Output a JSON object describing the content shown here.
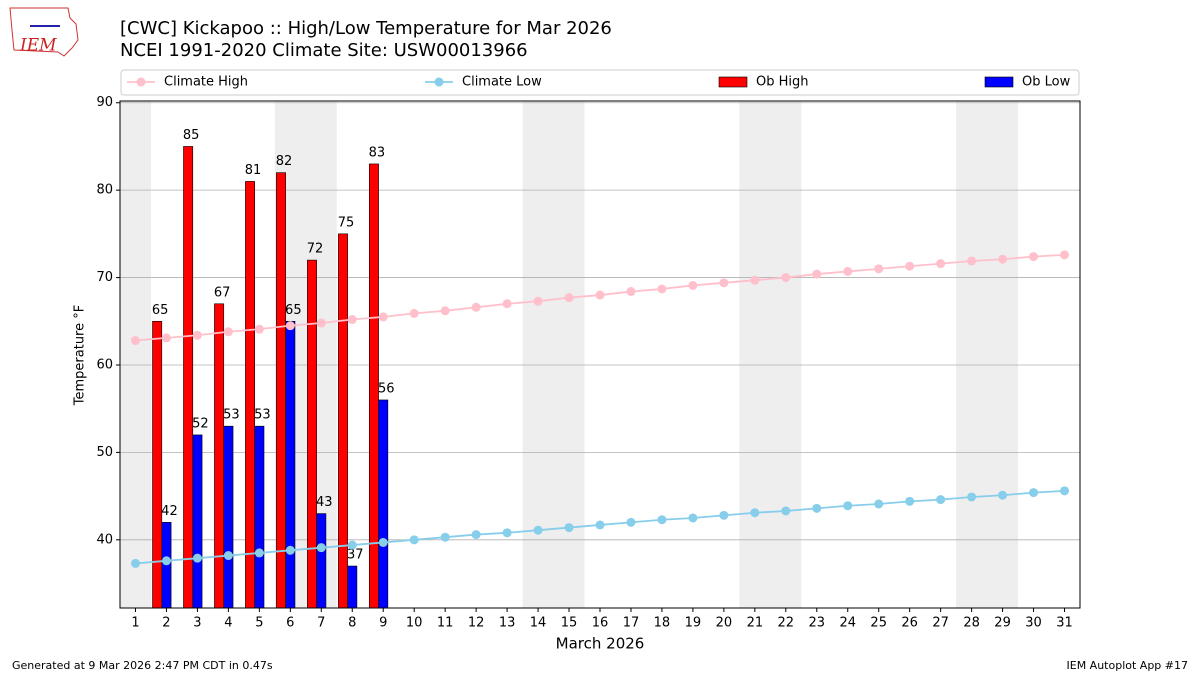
{
  "chart_data": {
    "type": "bar",
    "title": "[CWC] Kickapoo :: High/Low Temperature for Mar 2026",
    "subtitle": "NCEI 1991-2020 Climate Site: USW00013966",
    "x_label": "March 2026",
    "y_label": "Temperature °F",
    "logo": "IEM",
    "footer_left": "Generated at 9 Mar 2026 2:47 PM CDT in 0.47s",
    "footer_right": "IEM Autoplot App #17",
    "x": [
      1,
      2,
      3,
      4,
      5,
      6,
      7,
      8,
      9,
      10,
      11,
      12,
      13,
      14,
      15,
      16,
      17,
      18,
      19,
      20,
      21,
      22,
      23,
      24,
      25,
      26,
      27,
      28,
      29,
      30,
      31
    ],
    "xlim": [
      0.5,
      31.5
    ],
    "xticks": [
      1,
      2,
      3,
      4,
      5,
      6,
      7,
      8,
      9,
      10,
      11,
      12,
      13,
      14,
      15,
      16,
      17,
      18,
      19,
      20,
      21,
      22,
      23,
      24,
      25,
      26,
      27,
      28,
      29,
      30,
      31
    ],
    "ylim": [
      32.2,
      90.2
    ],
    "yticks": [
      40,
      50,
      60,
      70,
      80,
      90
    ],
    "grid": true,
    "legend": "top",
    "series": [
      {
        "name": "Climate High",
        "kind": "line",
        "color": "#ffc0cb",
        "values": [
          62.8,
          63.1,
          63.4,
          63.8,
          64.1,
          64.5,
          64.8,
          65.2,
          65.5,
          65.9,
          66.2,
          66.6,
          67.0,
          67.3,
          67.7,
          68.0,
          68.4,
          68.7,
          69.1,
          69.4,
          69.7,
          70.0,
          70.4,
          70.7,
          71.0,
          71.3,
          71.6,
          71.9,
          72.1,
          72.4,
          72.6
        ]
      },
      {
        "name": "Climate Low",
        "kind": "line",
        "color": "#87ceeb",
        "values": [
          37.3,
          37.6,
          37.9,
          38.2,
          38.5,
          38.8,
          39.1,
          39.4,
          39.7,
          40.0,
          40.3,
          40.6,
          40.8,
          41.1,
          41.4,
          41.7,
          42.0,
          42.3,
          42.5,
          42.8,
          43.1,
          43.3,
          43.6,
          43.9,
          44.1,
          44.4,
          44.6,
          44.9,
          45.1,
          45.4,
          45.6
        ]
      },
      {
        "name": "Ob High",
        "kind": "bar",
        "color": "#ff0000",
        "values": [
          null,
          65,
          85,
          67,
          81,
          82,
          72,
          75,
          83,
          null,
          null,
          null,
          null,
          null,
          null,
          null,
          null,
          null,
          null,
          null,
          null,
          null,
          null,
          null,
          null,
          null,
          null,
          null,
          null,
          null,
          null
        ]
      },
      {
        "name": "Ob Low",
        "kind": "bar",
        "color": "#0000ff",
        "values": [
          null,
          42,
          52,
          53,
          53,
          65,
          43,
          37,
          56,
          null,
          null,
          null,
          null,
          null,
          null,
          null,
          null,
          null,
          null,
          null,
          null,
          null,
          null,
          null,
          null,
          null,
          null,
          null,
          null,
          null,
          null
        ]
      }
    ]
  }
}
